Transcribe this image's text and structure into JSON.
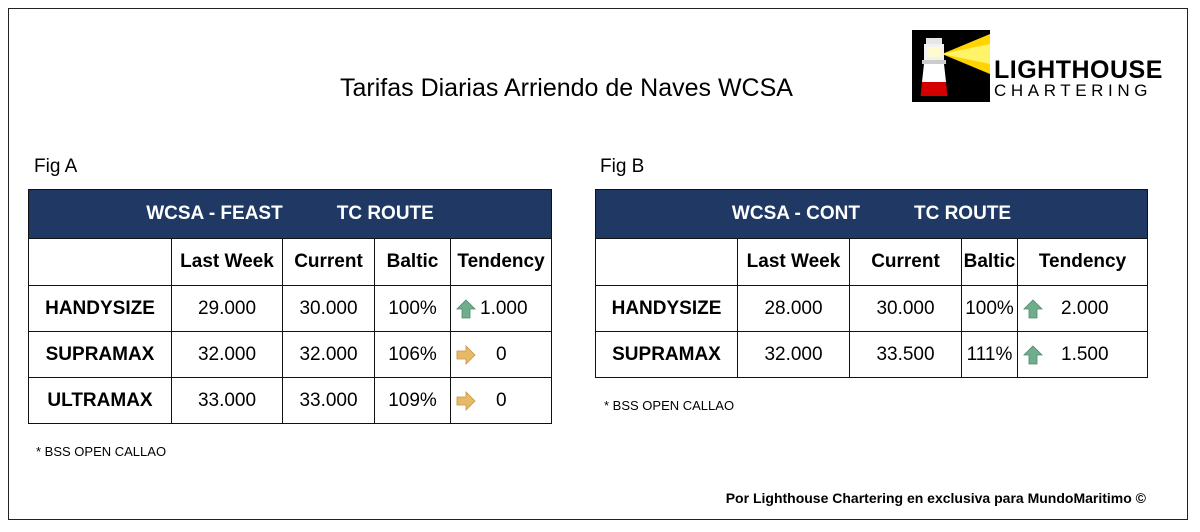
{
  "title": "Tarifas Diarias Arriendo de Naves WCSA",
  "logo": {
    "line1": "LIGHTHOUSE",
    "line2": "CHARTERING"
  },
  "colors": {
    "header_bg": "#1f3864",
    "arrow_up": "#70ad8c",
    "arrow_right": "#e8b968"
  },
  "fig_a": {
    "label": "Fig A",
    "header_route": "WCSA - FEAST",
    "header_type": "TC ROUTE",
    "columns": [
      "",
      "Last Week",
      "Current",
      "Baltic",
      "Tendency"
    ],
    "rows": [
      {
        "name": "HANDYSIZE",
        "last_week": "29.000",
        "current": "30.000",
        "baltic": "100%",
        "tendency_icon": "arrow-up-icon",
        "tendency": "1.000"
      },
      {
        "name": "SUPRAMAX",
        "last_week": "32.000",
        "current": "32.000",
        "baltic": "106%",
        "tendency_icon": "arrow-right-icon",
        "tendency": "0"
      },
      {
        "name": "ULTRAMAX",
        "last_week": "33.000",
        "current": "33.000",
        "baltic": "109%",
        "tendency_icon": "arrow-right-icon",
        "tendency": "0"
      }
    ],
    "note": "* BSS OPEN CALLAO"
  },
  "fig_b": {
    "label": "Fig B",
    "header_route": "WCSA - CONT",
    "header_type": "TC ROUTE",
    "columns": [
      "",
      "Last Week",
      "Current",
      "Baltic",
      "Tendency"
    ],
    "rows": [
      {
        "name": "HANDYSIZE",
        "last_week": "28.000",
        "current": "30.000",
        "baltic": "100%",
        "tendency_icon": "arrow-up-icon",
        "tendency": "2.000"
      },
      {
        "name": "SUPRAMAX",
        "last_week": "32.000",
        "current": "33.500",
        "baltic": "111%",
        "tendency_icon": "arrow-up-icon",
        "tendency": "1.500"
      }
    ],
    "note": "* BSS OPEN CALLAO"
  },
  "footer": "Por Lighthouse Chartering en exclusiva para MundoMaritimo ©"
}
